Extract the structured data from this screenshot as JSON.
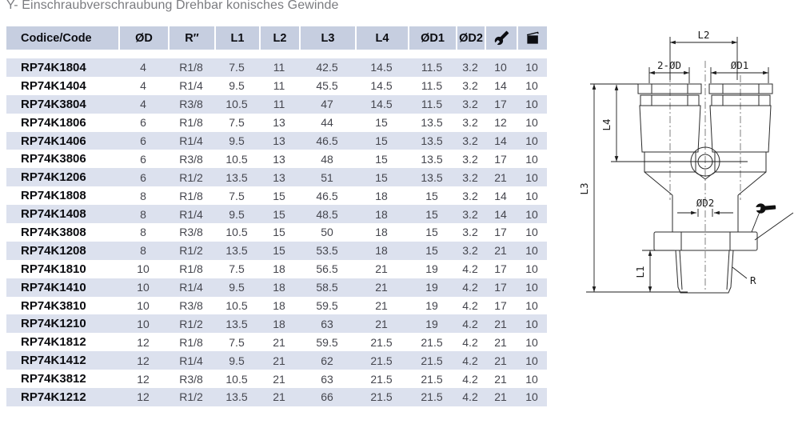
{
  "title": "Y- Einschraubverschraubung Drehbar konisches Gewinde",
  "table": {
    "columns": [
      {
        "id": "code",
        "label": "Codice/Code"
      },
      {
        "id": "d",
        "label": "ØD"
      },
      {
        "id": "r",
        "label": "R″"
      },
      {
        "id": "l1",
        "label": "L1"
      },
      {
        "id": "l2",
        "label": "L2"
      },
      {
        "id": "l3",
        "label": "L3"
      },
      {
        "id": "l4",
        "label": "L4"
      },
      {
        "id": "d1",
        "label": "ØD1"
      },
      {
        "id": "d2",
        "label": "ØD2"
      },
      {
        "id": "wrench",
        "label": "",
        "icon": "wrench-icon"
      },
      {
        "id": "package",
        "label": "",
        "icon": "package-icon"
      }
    ],
    "rows": [
      [
        "RP74K1804",
        "4",
        "R1/8",
        "7.5",
        "11",
        "42.5",
        "14.5",
        "11.5",
        "3.2",
        "10",
        "10"
      ],
      [
        "RP74K1404",
        "4",
        "R1/4",
        "9.5",
        "11",
        "45.5",
        "14.5",
        "11.5",
        "3.2",
        "14",
        "10"
      ],
      [
        "RP74K3804",
        "4",
        "R3/8",
        "10.5",
        "11",
        "47",
        "14.5",
        "11.5",
        "3.2",
        "17",
        "10"
      ],
      [
        "RP74K1806",
        "6",
        "R1/8",
        "7.5",
        "13",
        "44",
        "15",
        "13.5",
        "3.2",
        "12",
        "10"
      ],
      [
        "RP74K1406",
        "6",
        "R1/4",
        "9.5",
        "13",
        "46.5",
        "15",
        "13.5",
        "3.2",
        "14",
        "10"
      ],
      [
        "RP74K3806",
        "6",
        "R3/8",
        "10.5",
        "13",
        "48",
        "15",
        "13.5",
        "3.2",
        "17",
        "10"
      ],
      [
        "RP74K1206",
        "6",
        "R1/2",
        "13.5",
        "13",
        "51",
        "15",
        "13.5",
        "3.2",
        "21",
        "10"
      ],
      [
        "RP74K1808",
        "8",
        "R1/8",
        "7.5",
        "15",
        "46.5",
        "18",
        "15",
        "3.2",
        "14",
        "10"
      ],
      [
        "RP74K1408",
        "8",
        "R1/4",
        "9.5",
        "15",
        "48.5",
        "18",
        "15",
        "3.2",
        "14",
        "10"
      ],
      [
        "RP74K3808",
        "8",
        "R3/8",
        "10.5",
        "15",
        "50",
        "18",
        "15",
        "3.2",
        "17",
        "10"
      ],
      [
        "RP74K1208",
        "8",
        "R1/2",
        "13.5",
        "15",
        "53.5",
        "18",
        "15",
        "3.2",
        "21",
        "10"
      ],
      [
        "RP74K1810",
        "10",
        "R1/8",
        "7.5",
        "18",
        "56.5",
        "21",
        "19",
        "4.2",
        "17",
        "10"
      ],
      [
        "RP74K1410",
        "10",
        "R1/4",
        "9.5",
        "18",
        "58.5",
        "21",
        "19",
        "4.2",
        "17",
        "10"
      ],
      [
        "RP74K3810",
        "10",
        "R3/8",
        "10.5",
        "18",
        "59.5",
        "21",
        "19",
        "4.2",
        "17",
        "10"
      ],
      [
        "RP74K1210",
        "10",
        "R1/2",
        "13.5",
        "18",
        "63",
        "21",
        "19",
        "4.2",
        "21",
        "10"
      ],
      [
        "RP74K1812",
        "12",
        "R1/8",
        "7.5",
        "21",
        "59.5",
        "21.5",
        "21.5",
        "4.2",
        "21",
        "10"
      ],
      [
        "RP74K1412",
        "12",
        "R1/4",
        "9.5",
        "21",
        "62",
        "21.5",
        "21.5",
        "4.2",
        "21",
        "10"
      ],
      [
        "RP74K3812",
        "12",
        "R3/8",
        "10.5",
        "21",
        "63",
        "21.5",
        "21.5",
        "4.2",
        "21",
        "10"
      ],
      [
        "RP74K1212",
        "12",
        "R1/2",
        "13.5",
        "21",
        "66",
        "21.5",
        "21.5",
        "4.2",
        "21",
        "10"
      ]
    ]
  },
  "drawing": {
    "labels": {
      "l1": "L1",
      "l2": "L2",
      "l3": "L3",
      "l4": "L4",
      "two_d": "2-ØD",
      "d1": "ØD1",
      "d2": "ØD2",
      "r": "R"
    }
  },
  "colors": {
    "header_bg": "#c6cee0",
    "row_alt_bg": "#dce1ee",
    "title_text": "#7b7c80",
    "value_text": "#45464e",
    "code_text": "#0b0c10"
  }
}
